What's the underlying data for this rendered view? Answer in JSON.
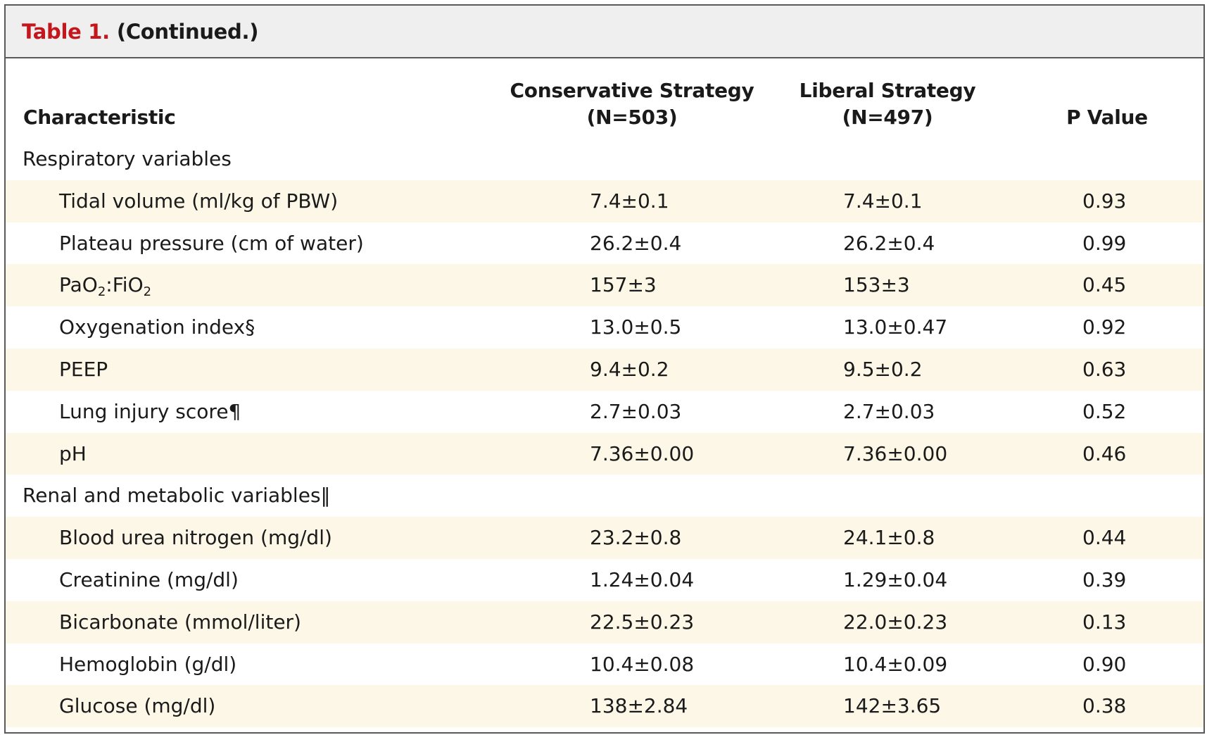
{
  "table": {
    "title_label": "Table 1.",
    "title_continued": "(Continued.)",
    "headers": {
      "characteristic": "Characteristic",
      "conservative_line1": "Conservative Strategy",
      "conservative_line2": "(N=503)",
      "liberal_line1": "Liberal Strategy",
      "liberal_line2": "(N=497)",
      "p_value": "P Value"
    },
    "rows": [
      {
        "label": "Respiratory variables",
        "conservative": "",
        "liberal": "",
        "p": ""
      },
      {
        "label": "Tidal volume (ml/kg of PBW)",
        "conservative": "7.4±0.1",
        "liberal": "7.4±0.1",
        "p": "0.93"
      },
      {
        "label": "Plateau pressure (cm of water)",
        "conservative": "26.2±0.4",
        "liberal": "26.2±0.4",
        "p": "0.99"
      },
      {
        "label_pre": "PaO",
        "label_sub1": "2",
        "label_mid": ":FiO",
        "label_sub2": "2",
        "conservative": "157±3",
        "liberal": "153±3",
        "p": "0.45"
      },
      {
        "label": "Oxygenation index§",
        "conservative": "13.0±0.5",
        "liberal": "13.0±0.47",
        "p": "0.92"
      },
      {
        "label": "PEEP",
        "conservative": "9.4±0.2",
        "liberal": "9.5±0.2",
        "p": "0.63"
      },
      {
        "label": "Lung injury score¶",
        "conservative": "2.7±0.03",
        "liberal": "2.7±0.03",
        "p": "0.52"
      },
      {
        "label": "pH",
        "conservative": "7.36±0.00",
        "liberal": "7.36±0.00",
        "p": "0.46"
      },
      {
        "label": "Renal and metabolic variables‖",
        "conservative": "",
        "liberal": "",
        "p": ""
      },
      {
        "label": "Blood urea nitrogen (mg/dl)",
        "conservative": "23.2±0.8",
        "liberal": "24.1±0.8",
        "p": "0.44"
      },
      {
        "label": "Creatinine (mg/dl)",
        "conservative": "1.24±0.04",
        "liberal": "1.29±0.04",
        "p": "0.39"
      },
      {
        "label": "Bicarbonate (mmol/liter)",
        "conservative": "22.5±0.23",
        "liberal": "22.0±0.23",
        "p": "0.13"
      },
      {
        "label": "Hemoglobin (g/dl)",
        "conservative": "10.4±0.08",
        "liberal": "10.4±0.09",
        "p": "0.90"
      },
      {
        "label": "Glucose (mg/dl)",
        "conservative": "138±2.84",
        "liberal": "142±3.65",
        "p": "0.38"
      }
    ]
  }
}
